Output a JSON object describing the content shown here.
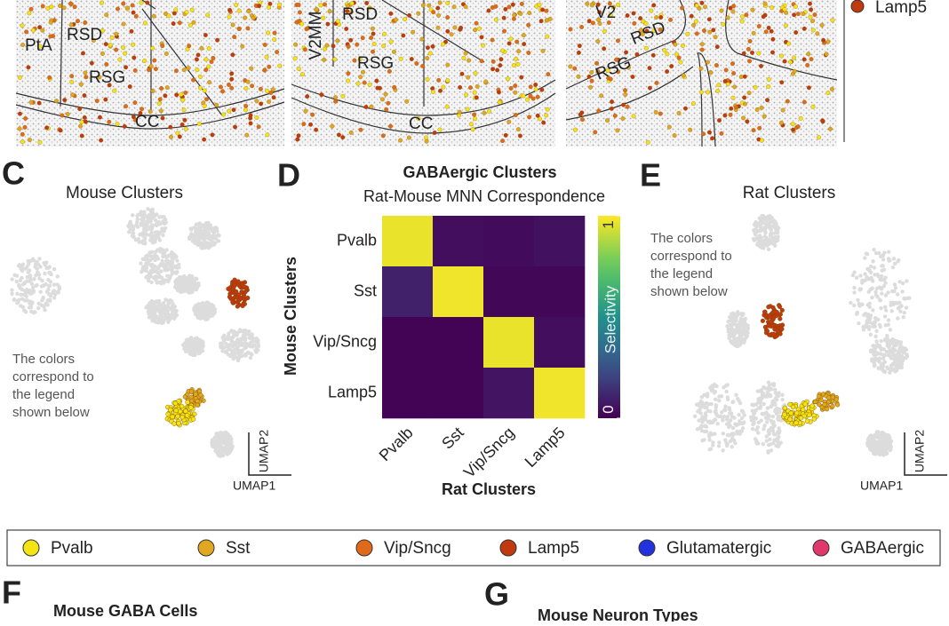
{
  "sections": [
    {
      "labels": [
        "PtA",
        "RSD",
        "RSG",
        "CC"
      ]
    },
    {
      "labels": [
        "V2MM",
        "RSD",
        "RSG",
        "CC"
      ]
    },
    {
      "labels": [
        "V2",
        "RSD",
        "RSG"
      ]
    }
  ],
  "sections_legend": "Lamp5",
  "panel_c": {
    "letter": "C",
    "title": "Mouse Clusters",
    "note": [
      "The colors",
      "correspond to",
      "the legend",
      "shown below"
    ],
    "x_axis": "UMAP1",
    "y_axis": "UMAP2"
  },
  "chart_data": {
    "type": "heatmap",
    "letter": "D",
    "title": "GABAergic Clusters",
    "subtitle": "Rat-Mouse MNN Correspondence",
    "x_label": "Rat Clusters",
    "y_label": "Mouse Clusters",
    "x_categories": [
      "Pvalb",
      "Sst",
      "Vip/Sncg",
      "Lamp5"
    ],
    "y_categories": [
      "Pvalb",
      "Sst",
      "Vip/Sncg",
      "Lamp5"
    ],
    "values": [
      [
        0.97,
        0.04,
        0.03,
        0.05
      ],
      [
        0.1,
        0.98,
        0.02,
        0.02
      ],
      [
        0.01,
        0.01,
        0.97,
        0.04
      ],
      [
        0.01,
        0.01,
        0.06,
        0.98
      ]
    ],
    "colorbar_label": "Selectivity",
    "zlim": [
      0,
      1
    ],
    "zticks": [
      0,
      1
    ],
    "colormap": "viridis"
  },
  "panel_e": {
    "letter": "E",
    "title": "Rat Clusters",
    "note": [
      "The colors",
      "correspond to",
      "the legend",
      "shown below"
    ],
    "x_axis": "UMAP1",
    "y_axis": "UMAP2"
  },
  "legend": [
    {
      "name": "Pvalb",
      "color": "#f5e414"
    },
    {
      "name": "Sst",
      "color": "#e0a820"
    },
    {
      "name": "Vip/Sncg",
      "color": "#e06a1a"
    },
    {
      "name": "Lamp5",
      "color": "#c0390f"
    },
    {
      "name": "Glutamatergic",
      "color": "#2233dd"
    },
    {
      "name": "GABAergic",
      "color": "#e0386a"
    }
  ],
  "panel_f": {
    "letter": "F",
    "title": "Mouse GABA Cells"
  },
  "panel_g": {
    "letter": "G",
    "title": "Mouse Neuron Types"
  }
}
